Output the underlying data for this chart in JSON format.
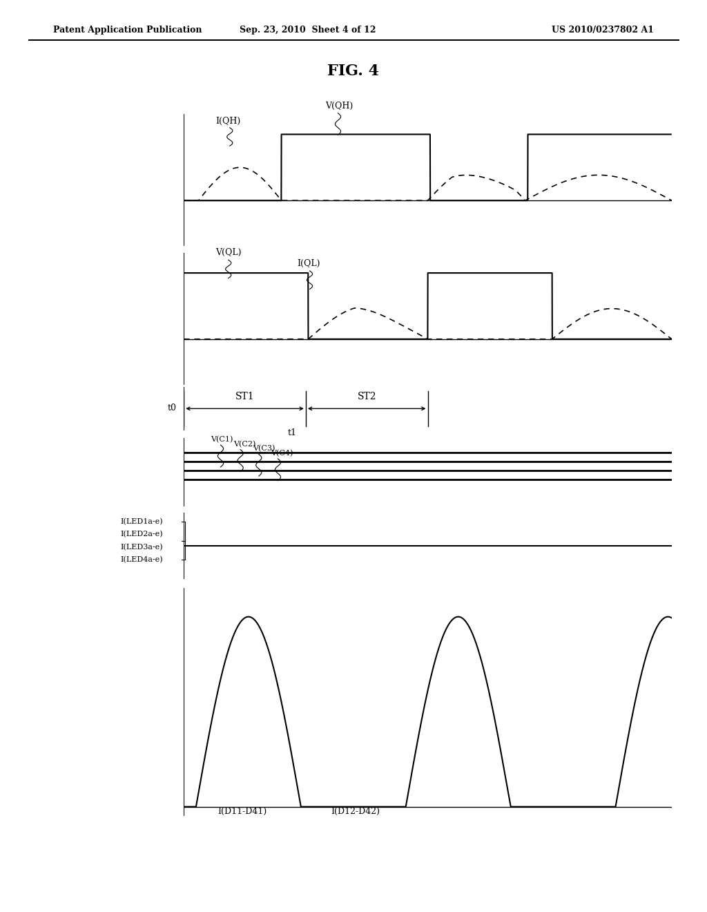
{
  "header_left": "Patent Application Publication",
  "header_center": "Sep. 23, 2010  Sheet 4 of 12",
  "header_right": "US 2010/0237802 A1",
  "fig_title": "FIG. 4",
  "bg": "#ffffff",
  "fg": "#000000",
  "panel1_label1": "I(QH)",
  "panel1_label2": "V(QH)",
  "panel2_label1": "V(QL)",
  "panel2_label2": "I(QL)",
  "panel3_labels": [
    "V(C1)",
    "V(C2)",
    "V(C3)",
    "V(C4)"
  ],
  "panel4_labels": [
    "I(LED1a-e)",
    "I(LED2a-e)",
    "I(LED3a-e)",
    "I(LED4a-e)"
  ],
  "panel5_label1": "I(D11-D41)",
  "panel5_label2": "I(D12-D42)",
  "t0_label": "t0",
  "t1_label": "t1",
  "st1_label": "ST1",
  "st2_label": "ST2"
}
